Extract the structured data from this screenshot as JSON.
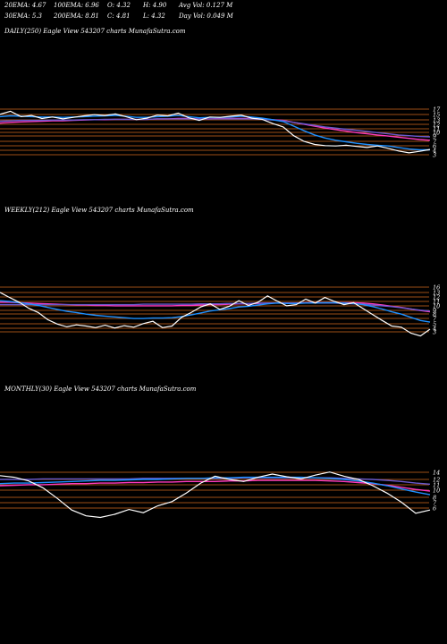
{
  "stats": {
    "ema20": "20EMA: 4.67",
    "ema100": "100EMA: 6.96",
    "open": "O: 4.32",
    "high": "H: 4.90",
    "avg_vol": "Avg Vol: 0.127 M",
    "ema30": "30EMA: 5.3",
    "ema200": "200EMA: 8.81",
    "close": "C: 4.81",
    "low": "L: 4.32",
    "day_vol": "Day Vol: 0.049 M"
  },
  "colors": {
    "background": "#000000",
    "price": "#ffffff",
    "ema_short": "#1e90ff",
    "ema_long": "#ff3bbf",
    "ema_mid": "#6a5acd",
    "level_lines": "#d2691e"
  },
  "chart_data": [
    {
      "type": "line",
      "title": "DAILY(250) Eagle  View  543207 charts MunafaSutra.com",
      "y_ticks": [
        "17",
        "15",
        "13",
        "12",
        "11",
        "10",
        "9",
        "7",
        "6",
        "4",
        "3"
      ],
      "series": [
        {
          "role": "price",
          "values": [
            15.2,
            16.0,
            14.6,
            14.9,
            14.1,
            14.5,
            14.0,
            14.4,
            14.8,
            15.1,
            14.9,
            15.3,
            14.6,
            13.8,
            14.2,
            15.0,
            14.8,
            15.5,
            14.3,
            13.6,
            14.5,
            14.4,
            14.7,
            15.0,
            14.2,
            13.9,
            12.8,
            11.9,
            9.6,
            8.1,
            7.3,
            7.0,
            6.9,
            7.1,
            6.8,
            6.5,
            6.9,
            6.3,
            5.6,
            5.1,
            5.5,
            6.0
          ]
        },
        {
          "role": "ema",
          "values": [
            14.6,
            14.8,
            14.7,
            14.6,
            14.5,
            14.5,
            14.4,
            14.5,
            14.6,
            14.7,
            14.8,
            14.9,
            14.7,
            14.4,
            14.4,
            14.6,
            14.7,
            14.9,
            14.6,
            14.3,
            14.4,
            14.4,
            14.5,
            14.7,
            14.5,
            14.2,
            13.8,
            13.3,
            12.1,
            10.9,
            9.8,
            9.0,
            8.4,
            8.0,
            7.6,
            7.3,
            7.1,
            6.9,
            6.5,
            6.1,
            5.9,
            5.9
          ]
        },
        {
          "role": "ema",
          "values": [
            12.9,
            13.1,
            13.2,
            13.3,
            13.4,
            13.5,
            13.5,
            13.6,
            13.7,
            13.8,
            13.8,
            13.9,
            13.9,
            13.9,
            13.9,
            14.0,
            14.0,
            14.1,
            14.1,
            14.0,
            14.0,
            14.1,
            14.1,
            14.1,
            14.1,
            14.0,
            13.8,
            13.6,
            13.1,
            12.6,
            12.1,
            11.6,
            11.2,
            10.8,
            10.4,
            10.1,
            9.8,
            9.5,
            9.2,
            8.9,
            8.6,
            8.4
          ]
        },
        {
          "role": "ema",
          "values": [
            13.4,
            13.5,
            13.6,
            13.6,
            13.6,
            13.7,
            13.7,
            13.7,
            13.8,
            13.8,
            13.9,
            13.9,
            13.9,
            13.9,
            13.9,
            14.0,
            14.0,
            14.0,
            14.0,
            14.0,
            14.0,
            14.0,
            14.0,
            14.0,
            14.0,
            13.9,
            13.7,
            13.5,
            13.1,
            12.7,
            12.3,
            11.9,
            11.6,
            11.3,
            11.0,
            10.7,
            10.4,
            10.1,
            9.8,
            9.6,
            9.4,
            9.3
          ]
        }
      ]
    },
    {
      "type": "line",
      "title": "WEEKLY(212) Eagle  View  543207 charts MunafaSutra.com",
      "y_ticks": [
        "16",
        "13",
        "12",
        "11",
        "10",
        "9",
        "8",
        "7",
        "5",
        "4",
        "3"
      ],
      "series": [
        {
          "role": "price",
          "values": [
            14.5,
            13.2,
            12.0,
            10.5,
            9.4,
            7.6,
            6.5,
            5.8,
            6.3,
            6.0,
            5.6,
            6.2,
            5.5,
            6.1,
            5.7,
            6.6,
            7.2,
            5.6,
            6.0,
            8.2,
            9.4,
            10.8,
            11.6,
            10.2,
            11.0,
            12.4,
            11.2,
            12.0,
            13.6,
            12.3,
            11.1,
            11.4,
            12.8,
            11.8,
            13.2,
            12.2,
            11.4,
            11.9,
            10.4,
            8.9,
            7.4,
            6.0,
            5.7,
            4.2,
            3.5,
            5.2
          ]
        },
        {
          "role": "ema",
          "values": [
            12.4,
            12.2,
            11.9,
            11.6,
            11.2,
            10.7,
            10.2,
            9.7,
            9.4,
            9.0,
            8.7,
            8.5,
            8.3,
            8.1,
            7.9,
            7.9,
            8.0,
            8.0,
            8.1,
            8.4,
            8.8,
            9.3,
            9.8,
            10.1,
            10.4,
            10.8,
            11.0,
            11.3,
            11.6,
            11.8,
            11.7,
            11.7,
            11.8,
            11.8,
            11.9,
            11.9,
            11.8,
            11.7,
            11.4,
            10.9,
            10.3,
            9.6,
            9.0,
            8.2,
            7.4,
            7.0
          ]
        },
        {
          "role": "ema",
          "values": [
            12.0,
            12.0,
            11.9,
            11.8,
            11.7,
            11.6,
            11.5,
            11.4,
            11.3,
            11.3,
            11.2,
            11.2,
            11.1,
            11.1,
            11.1,
            11.1,
            11.1,
            11.1,
            11.1,
            11.2,
            11.2,
            11.3,
            11.4,
            11.4,
            11.5,
            11.6,
            11.6,
            11.7,
            11.8,
            11.8,
            11.8,
            11.8,
            11.9,
            11.9,
            11.9,
            11.9,
            11.9,
            11.9,
            11.8,
            11.6,
            11.3,
            11.0,
            10.7,
            10.3,
            9.9,
            9.6
          ]
        },
        {
          "role": "ema",
          "values": [
            11.4,
            11.4,
            11.4,
            11.4,
            11.4,
            11.4,
            11.4,
            11.4,
            11.4,
            11.4,
            11.4,
            11.4,
            11.4,
            11.4,
            11.4,
            11.5,
            11.5,
            11.5,
            11.5,
            11.5,
            11.5,
            11.6,
            11.6,
            11.6,
            11.7,
            11.7,
            11.7,
            11.8,
            11.8,
            11.8,
            11.8,
            11.8,
            11.8,
            11.8,
            11.8,
            11.8,
            11.7,
            11.6,
            11.5,
            11.3,
            11.1,
            10.9,
            10.6,
            10.3,
            10.0,
            9.8
          ]
        }
      ]
    },
    {
      "type": "line",
      "title": "MONTHLY(30) Eagle  View  543207 charts MunafaSutra.com",
      "y_ticks": [
        "14",
        "12",
        "11",
        "10",
        "8",
        "7",
        "6"
      ],
      "series": [
        {
          "role": "price",
          "values": [
            12.5,
            12.2,
            11.5,
            10.2,
            8.2,
            6.0,
            4.9,
            4.6,
            5.2,
            6.1,
            5.5,
            6.8,
            7.6,
            9.2,
            11.1,
            12.4,
            11.8,
            11.4,
            12.2,
            12.8,
            12.3,
            11.9,
            12.6,
            13.2,
            12.4,
            11.8,
            10.6,
            9.2,
            7.5,
            5.4,
            6.0
          ]
        },
        {
          "role": "ema",
          "values": [
            11.0,
            11.1,
            11.1,
            11.2,
            11.3,
            11.4,
            11.5,
            11.6,
            11.6,
            11.7,
            11.8,
            11.8,
            11.9,
            12.0,
            12.0,
            12.1,
            12.1,
            12.2,
            12.2,
            12.2,
            12.2,
            12.2,
            12.1,
            12.0,
            11.8,
            11.5,
            11.1,
            10.6,
            10.0,
            9.4,
            8.9
          ]
        },
        {
          "role": "ema",
          "values": [
            10.6,
            10.7,
            10.8,
            10.8,
            10.9,
            11.0,
            11.0,
            11.1,
            11.1,
            11.2,
            11.2,
            11.3,
            11.3,
            11.4,
            11.4,
            11.4,
            11.5,
            11.5,
            11.6,
            11.6,
            11.6,
            11.6,
            11.6,
            11.5,
            11.4,
            11.2,
            11.0,
            10.7,
            10.3,
            9.9,
            9.6
          ]
        },
        {
          "role": "ema",
          "values": [
            11.8,
            11.8,
            11.8,
            11.9,
            11.9,
            11.9,
            11.9,
            11.9,
            11.9,
            11.9,
            12.0,
            12.0,
            12.0,
            12.0,
            12.0,
            12.0,
            12.0,
            12.1,
            12.1,
            12.1,
            12.1,
            12.1,
            12.1,
            12.1,
            12.0,
            11.9,
            11.8,
            11.6,
            11.4,
            11.1,
            10.9
          ]
        }
      ]
    }
  ]
}
